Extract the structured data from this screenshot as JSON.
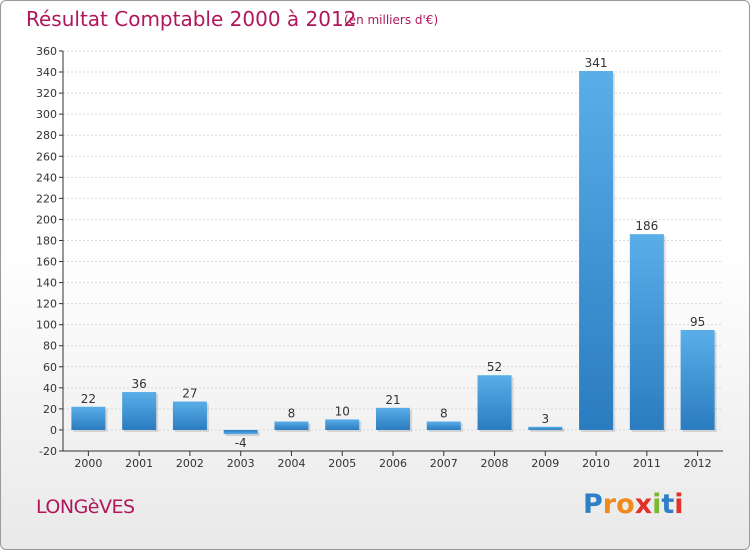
{
  "header": {
    "title": "Résultat Comptable 2000 à 2012",
    "subtitle": "(en milliers d'€)"
  },
  "footer": {
    "commune": "LONGèVES",
    "brand_letters": [
      {
        "ch": "P",
        "color": "#2f7fc6"
      },
      {
        "ch": "r",
        "color": "#f08a1c"
      },
      {
        "ch": "o",
        "color": "#f08a1c"
      },
      {
        "ch": "x",
        "color": "#e0322b"
      },
      {
        "ch": "i",
        "color": "#7ab92f"
      },
      {
        "ch": "t",
        "color": "#2f7fc6"
      },
      {
        "ch": "i",
        "color": "#e0322b"
      }
    ]
  },
  "chart_data": {
    "type": "bar",
    "categories": [
      "2000",
      "2001",
      "2002",
      "2003",
      "2004",
      "2005",
      "2006",
      "2007",
      "2008",
      "2009",
      "2010",
      "2011",
      "2012"
    ],
    "values": [
      22,
      36,
      27,
      -4,
      8,
      10,
      21,
      8,
      52,
      3,
      341,
      186,
      95
    ],
    "ylim": [
      -20,
      360
    ],
    "yticks": [
      -20,
      0,
      20,
      40,
      60,
      80,
      100,
      120,
      140,
      160,
      180,
      200,
      220,
      240,
      260,
      280,
      300,
      320,
      340,
      360
    ],
    "grid": true,
    "bar_color_top": "#5aaee8",
    "bar_color_bottom": "#2a7cc0"
  }
}
